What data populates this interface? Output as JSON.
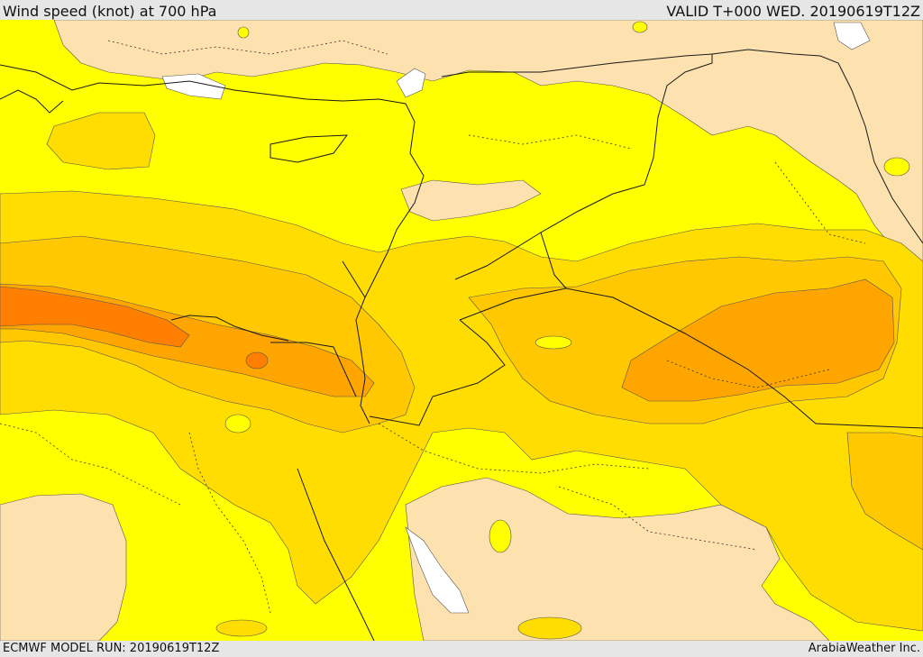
{
  "header": {
    "title": "Wind speed (knot) at 700 hPa",
    "valid": "VALID T+000 WED. 20190619T12Z"
  },
  "footer": {
    "model_run": "ECMWF MODEL RUN: 20190619T12Z",
    "credit": "ArabiaWeather Inc."
  },
  "colors": {
    "land_light": "#fde1ae",
    "yellow": "#ffff00",
    "gold_light": "#ffdd00",
    "gold": "#ffc800",
    "orange": "#ffa500",
    "dark_orange": "#ff8000",
    "water": "#ffffff",
    "border": "#1a1a1a"
  },
  "icons": [
    "map-canvas"
  ]
}
